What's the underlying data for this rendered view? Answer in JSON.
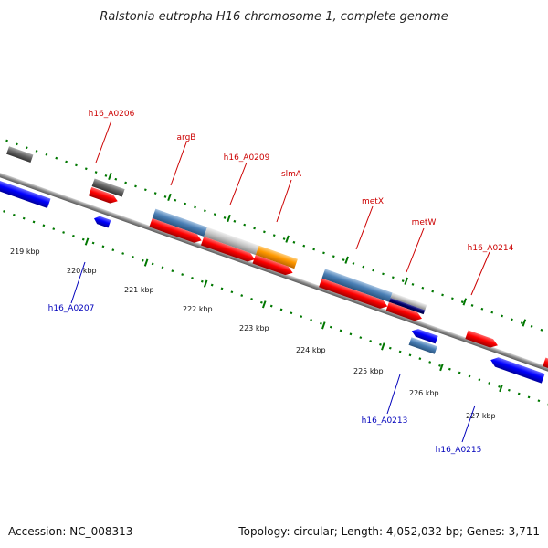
{
  "title": "Ralstonia eutropha H16 chromosome 1, complete genome",
  "footer": {
    "accession": "Accession: NC_008313",
    "summary": "Topology: circular; Length: 4,052,032 bp; Genes: 3,711"
  },
  "colors": {
    "forward": "#ff0000",
    "reverse": "#0000ff",
    "steel": "#4a7fb5",
    "light_gray": "#c8c8c8",
    "dark_gray": "#666666",
    "orange": "#ff9900",
    "navy": "#00006e",
    "tick_green": "#007700",
    "label_forward": "#cc0000",
    "label_reverse": "#0000bb",
    "backbone": "#888888"
  },
  "ticks": [
    {
      "label": "219 kbp"
    },
    {
      "label": "220 kbp"
    },
    {
      "label": "221 kbp"
    },
    {
      "label": "222 kbp"
    },
    {
      "label": "223 kbp"
    },
    {
      "label": "224 kbp"
    },
    {
      "label": "225 kbp"
    },
    {
      "label": "226 kbp"
    },
    {
      "label": "227 kbp"
    }
  ],
  "labels": [
    {
      "text": "h16_A0206",
      "strand": "forward"
    },
    {
      "text": "argB",
      "strand": "forward"
    },
    {
      "text": "h16_A0209",
      "strand": "forward"
    },
    {
      "text": "slmA",
      "strand": "forward"
    },
    {
      "text": "metX",
      "strand": "forward"
    },
    {
      "text": "metW",
      "strand": "forward"
    },
    {
      "text": "h16_A0214",
      "strand": "forward"
    },
    {
      "text": "h16_A0207",
      "strand": "reverse"
    },
    {
      "text": "h16_A0213",
      "strand": "reverse"
    },
    {
      "text": "h16_A0215",
      "strand": "reverse"
    }
  ]
}
